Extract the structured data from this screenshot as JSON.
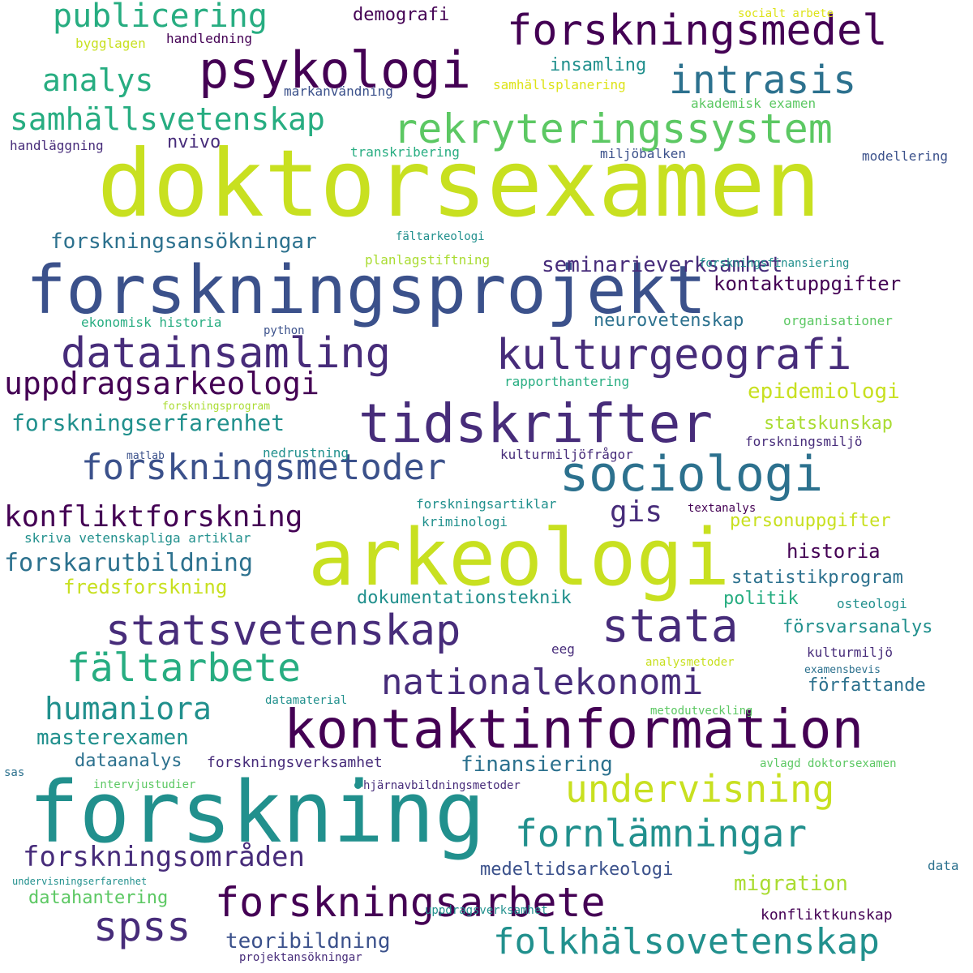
{
  "palette": {
    "p1": "#440154",
    "p2": "#472c7a",
    "p3": "#3b518b",
    "p4": "#2c718e",
    "p5": "#21908d",
    "p6": "#27ad81",
    "p7": "#5cc863",
    "p8": "#aadc32",
    "p9": "#c8e020",
    "p10": "#dde318"
  },
  "words": [
    {
      "text": "doktorsexamen",
      "color": "p9"
    },
    {
      "text": "forskningsprojekt",
      "color": "p3"
    },
    {
      "text": "arkeologi",
      "color": "p9"
    },
    {
      "text": "forskning",
      "color": "p5"
    },
    {
      "text": "tidskrifter",
      "color": "p2"
    },
    {
      "text": "kontaktinformation",
      "color": "p1"
    },
    {
      "text": "psykologi",
      "color": "p1"
    },
    {
      "text": "datainsamling",
      "color": "p2"
    },
    {
      "text": "kulturgeografi",
      "color": "p2"
    },
    {
      "text": "sociologi",
      "color": "p4"
    },
    {
      "text": "statsvetenskap",
      "color": "p2"
    },
    {
      "text": "stata",
      "color": "p2"
    },
    {
      "text": "forskningsmedel",
      "color": "p1"
    },
    {
      "text": "rekryteringssystem",
      "color": "p7"
    },
    {
      "text": "forskningsmetoder",
      "color": "p3"
    },
    {
      "text": "fältarbete",
      "color": "p6"
    },
    {
      "text": "nationalekonomi",
      "color": "p2"
    },
    {
      "text": "undervisning",
      "color": "p9"
    },
    {
      "text": "fornlämningar",
      "color": "p5"
    },
    {
      "text": "forskningsarbete",
      "color": "p1"
    },
    {
      "text": "folkhälsovetenskap",
      "color": "p5"
    },
    {
      "text": "intrasis",
      "color": "p4"
    },
    {
      "text": "samhällsvetenskap",
      "color": "p6"
    },
    {
      "text": "publicering",
      "color": "p6"
    },
    {
      "text": "uppdragsarkeologi",
      "color": "p1"
    },
    {
      "text": "konfliktforskning",
      "color": "p1"
    },
    {
      "text": "forskningsområden",
      "color": "p2"
    },
    {
      "text": "humaniora",
      "color": "p5"
    },
    {
      "text": "spss",
      "color": "p2"
    },
    {
      "text": "analys",
      "color": "p6"
    },
    {
      "text": "forskningsansökningar",
      "color": "p4"
    },
    {
      "text": "seminarieverksamhet",
      "color": "p2"
    },
    {
      "text": "forskningserfarenhet",
      "color": "p5"
    },
    {
      "text": "kontaktuppgifter",
      "color": "p1"
    },
    {
      "text": "epidemiologi",
      "color": "p9"
    },
    {
      "text": "forskarutbildning",
      "color": "p4"
    },
    {
      "text": "gis",
      "color": "p2"
    },
    {
      "text": "historia",
      "color": "p1"
    },
    {
      "text": "masterexamen",
      "color": "p5"
    },
    {
      "text": "medeltidsarkeologi",
      "color": "p3"
    },
    {
      "text": "teoribildning",
      "color": "p3"
    },
    {
      "text": "migration",
      "color": "p8"
    },
    {
      "text": "finansiering",
      "color": "p4"
    },
    {
      "text": "neurovetenskap",
      "color": "p4"
    },
    {
      "text": "statskunskap",
      "color": "p8"
    },
    {
      "text": "personuppgifter",
      "color": "p9"
    },
    {
      "text": "statistikprogram",
      "color": "p4"
    },
    {
      "text": "fredsforskning",
      "color": "p9"
    },
    {
      "text": "dokumentationsteknik",
      "color": "p5"
    },
    {
      "text": "politik",
      "color": "p6"
    },
    {
      "text": "försvarsanalys",
      "color": "p5"
    },
    {
      "text": "författande",
      "color": "p4"
    },
    {
      "text": "demografi",
      "color": "p1"
    },
    {
      "text": "insamling",
      "color": "p5"
    },
    {
      "text": "nvivo",
      "color": "p2"
    },
    {
      "text": "dataanalys",
      "color": "p4"
    },
    {
      "text": "datahantering",
      "color": "p7"
    },
    {
      "text": "forskningsverksamhet",
      "color": "p2"
    },
    {
      "text": "konfliktkunskap",
      "color": "p1"
    },
    {
      "text": "samhällsplanering",
      "color": "p10"
    },
    {
      "text": "bygglagen",
      "color": "p9"
    },
    {
      "text": "handledning",
      "color": "p1"
    },
    {
      "text": "socialt arbete",
      "color": "p10"
    },
    {
      "text": "markanvändning",
      "color": "p3"
    },
    {
      "text": "akademisk examen",
      "color": "p7"
    },
    {
      "text": "handläggning",
      "color": "p2"
    },
    {
      "text": "transkribering",
      "color": "p6"
    },
    {
      "text": "miljöbalken",
      "color": "p3"
    },
    {
      "text": "modellering",
      "color": "p3"
    },
    {
      "text": "fältarkeologi",
      "color": "p5"
    },
    {
      "text": "planlagstiftning",
      "color": "p8"
    },
    {
      "text": "forskningsfinansiering",
      "color": "p5"
    },
    {
      "text": "ekonomisk historia",
      "color": "p6"
    },
    {
      "text": "python",
      "color": "p3"
    },
    {
      "text": "organisationer",
      "color": "p7"
    },
    {
      "text": "rapporthantering",
      "color": "p6"
    },
    {
      "text": "forskningsprogram",
      "color": "p8"
    },
    {
      "text": "matlab",
      "color": "p3"
    },
    {
      "text": "nedrustning",
      "color": "p5"
    },
    {
      "text": "kulturmiljöfrågor",
      "color": "p2"
    },
    {
      "text": "forskningsmiljö",
      "color": "p2"
    },
    {
      "text": "forskningsartiklar",
      "color": "p5"
    },
    {
      "text": "kriminologi",
      "color": "p5"
    },
    {
      "text": "textanalys",
      "color": "p1"
    },
    {
      "text": "skriva vetenskapliga artiklar",
      "color": "p5"
    },
    {
      "text": "osteologi",
      "color": "p5"
    },
    {
      "text": "eeg",
      "color": "p2"
    },
    {
      "text": "kulturmiljö",
      "color": "p2"
    },
    {
      "text": "analysmetoder",
      "color": "p9"
    },
    {
      "text": "examensbevis",
      "color": "p4"
    },
    {
      "text": "datamaterial",
      "color": "p5"
    },
    {
      "text": "metodutveckling",
      "color": "p7"
    },
    {
      "text": "avlagd doktorsexamen",
      "color": "p7"
    },
    {
      "text": "sas",
      "color": "p4"
    },
    {
      "text": "intervjustudier",
      "color": "p7"
    },
    {
      "text": "hjärnavbildningsmetoder",
      "color": "p2"
    },
    {
      "text": "data",
      "color": "p4"
    },
    {
      "text": "undervisningserfarenhet",
      "color": "p5"
    },
    {
      "text": "uppdragsverksamhet",
      "color": "p5"
    },
    {
      "text": "projektansökningar",
      "color": "p2"
    }
  ]
}
